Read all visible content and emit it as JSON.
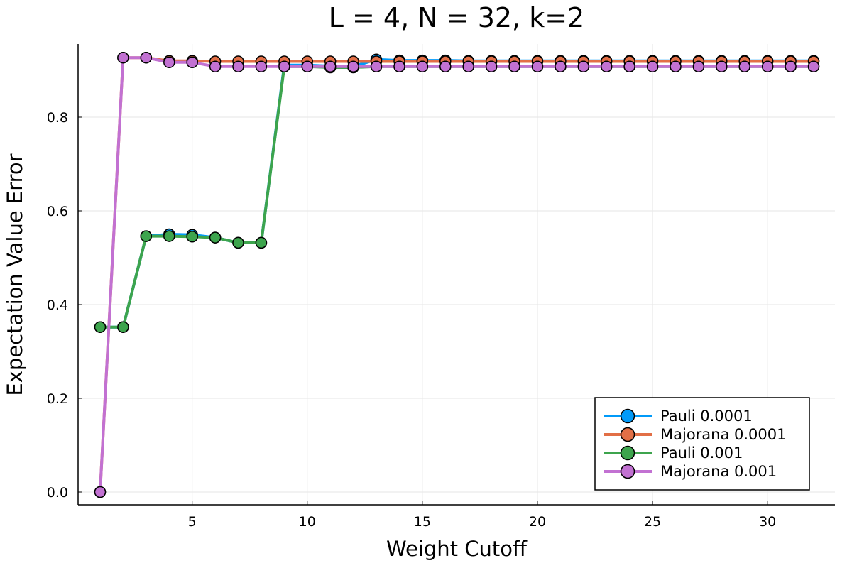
{
  "chart_data": {
    "type": "line",
    "title": "L = 4, N = 32, k=2",
    "xlabel": "Weight Cutoff",
    "ylabel": "Expectation Value Error",
    "xlim": [
      0,
      33
    ],
    "ylim": [
      -0.027,
      0.955
    ],
    "xticks": [
      5,
      10,
      15,
      20,
      25,
      30
    ],
    "xtick_labels": [
      "5",
      "10",
      "15",
      "20",
      "25",
      "30"
    ],
    "yticks": [
      0.0,
      0.2,
      0.4,
      0.6,
      0.8
    ],
    "ytick_labels": [
      "0.0",
      "0.2",
      "0.4",
      "0.6",
      "0.8"
    ],
    "grid": true,
    "legend_position": "bottom-right",
    "series": [
      {
        "name": "Pauli 0.0001",
        "color": "#009af9",
        "x": [
          1,
          2,
          3,
          4,
          5,
          6,
          7,
          8,
          9,
          10,
          11,
          12,
          13,
          14,
          15,
          16,
          17,
          18,
          19,
          20,
          21,
          22,
          23,
          24,
          25,
          26,
          27,
          28,
          29,
          30,
          31,
          32
        ],
        "y": [
          0.352,
          0.352,
          0.546,
          0.55,
          0.549,
          0.543,
          0.532,
          0.532,
          0.911,
          0.911,
          0.909,
          0.908,
          0.923,
          0.921,
          0.921,
          0.921,
          0.92,
          0.92,
          0.92,
          0.92,
          0.92,
          0.92,
          0.92,
          0.92,
          0.92,
          0.92,
          0.92,
          0.92,
          0.92,
          0.92,
          0.92,
          0.92
        ]
      },
      {
        "name": "Majorana 0.0001",
        "color": "#e26f46",
        "x": [
          1,
          2,
          3,
          4,
          5,
          6,
          7,
          8,
          9,
          10,
          11,
          12,
          13,
          14,
          15,
          16,
          17,
          18,
          19,
          20,
          21,
          22,
          23,
          24,
          25,
          26,
          27,
          28,
          29,
          30,
          31,
          32
        ],
        "y": [
          0.0,
          0.927,
          0.927,
          0.92,
          0.92,
          0.919,
          0.919,
          0.919,
          0.919,
          0.919,
          0.919,
          0.919,
          0.919,
          0.919,
          0.919,
          0.919,
          0.919,
          0.919,
          0.919,
          0.919,
          0.919,
          0.919,
          0.919,
          0.919,
          0.919,
          0.919,
          0.919,
          0.919,
          0.919,
          0.919,
          0.919,
          0.919
        ]
      },
      {
        "name": "Pauli 0.001",
        "color": "#3da44d",
        "x": [
          1,
          2,
          3,
          4,
          5,
          6,
          7,
          8,
          9,
          10,
          11,
          12,
          13,
          14,
          15,
          16,
          17,
          18,
          19,
          20,
          21,
          22,
          23,
          24,
          25,
          26,
          27,
          28,
          29,
          30,
          31,
          32
        ],
        "y": [
          0.352,
          0.352,
          0.546,
          0.546,
          0.545,
          0.543,
          0.532,
          0.532,
          0.908,
          0.908,
          0.906,
          0.906,
          0.908,
          0.908,
          0.908,
          0.908,
          0.908,
          0.908,
          0.908,
          0.908,
          0.908,
          0.908,
          0.908,
          0.908,
          0.908,
          0.908,
          0.908,
          0.908,
          0.908,
          0.908,
          0.908,
          0.908
        ]
      },
      {
        "name": "Majorana 0.001",
        "color": "#c271d2",
        "x": [
          1,
          2,
          3,
          4,
          5,
          6,
          7,
          8,
          9,
          10,
          11,
          12,
          13,
          14,
          15,
          16,
          17,
          18,
          19,
          20,
          21,
          22,
          23,
          24,
          25,
          26,
          27,
          28,
          29,
          30,
          31,
          32
        ],
        "y": [
          0.0,
          0.927,
          0.927,
          0.917,
          0.917,
          0.908,
          0.908,
          0.908,
          0.908,
          0.908,
          0.908,
          0.908,
          0.908,
          0.908,
          0.908,
          0.908,
          0.908,
          0.908,
          0.908,
          0.908,
          0.908,
          0.908,
          0.908,
          0.908,
          0.908,
          0.908,
          0.908,
          0.908,
          0.908,
          0.908,
          0.908,
          0.908
        ]
      }
    ]
  }
}
